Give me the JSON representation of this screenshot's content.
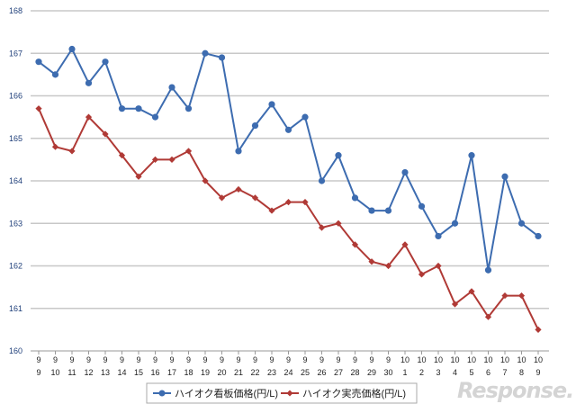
{
  "chart_data": {
    "type": "line",
    "title": "",
    "xlabel": "",
    "ylabel": "",
    "ylim": [
      160,
      168
    ],
    "yticks": [
      160,
      161,
      162,
      163,
      164,
      165,
      166,
      167,
      168
    ],
    "x_month": [
      "9",
      "9",
      "9",
      "9",
      "9",
      "9",
      "9",
      "9",
      "9",
      "9",
      "9",
      "9",
      "9",
      "9",
      "9",
      "9",
      "9",
      "9",
      "9",
      "9",
      "9",
      "9",
      "10",
      "10",
      "10",
      "10",
      "10",
      "10",
      "10",
      "10",
      "10"
    ],
    "x_day": [
      "9",
      "10",
      "11",
      "12",
      "13",
      "14",
      "15",
      "16",
      "17",
      "18",
      "19",
      "20",
      "21",
      "22",
      "23",
      "24",
      "25",
      "26",
      "27",
      "28",
      "29",
      "30",
      "1",
      "2",
      "3",
      "4",
      "5",
      "6",
      "7",
      "8",
      "9"
    ],
    "series": [
      {
        "name": "ハイオク看板価格(円/L)",
        "color": "#3d6cb0",
        "marker": "circle",
        "values": [
          166.8,
          166.5,
          167.1,
          166.3,
          166.8,
          165.7,
          165.7,
          165.5,
          166.2,
          165.7,
          167.0,
          166.9,
          164.7,
          165.3,
          165.8,
          165.2,
          165.5,
          164.0,
          164.6,
          163.6,
          163.3,
          163.3,
          164.2,
          163.4,
          162.7,
          163.0,
          164.6,
          161.9,
          164.1,
          163.0,
          162.7
        ]
      },
      {
        "name": "ハイオク実売価格(円/L)",
        "color": "#b03a36",
        "marker": "diamond",
        "values": [
          165.7,
          164.8,
          164.7,
          165.5,
          165.1,
          164.6,
          164.1,
          164.5,
          164.5,
          164.7,
          164.0,
          163.6,
          163.8,
          163.6,
          163.3,
          163.5,
          163.5,
          162.9,
          163.0,
          162.5,
          162.1,
          162.0,
          162.5,
          161.8,
          162.0,
          161.1,
          161.4,
          160.8,
          161.3,
          161.3,
          160.5
        ]
      }
    ],
    "legend": "bottom"
  },
  "watermark": "Response."
}
